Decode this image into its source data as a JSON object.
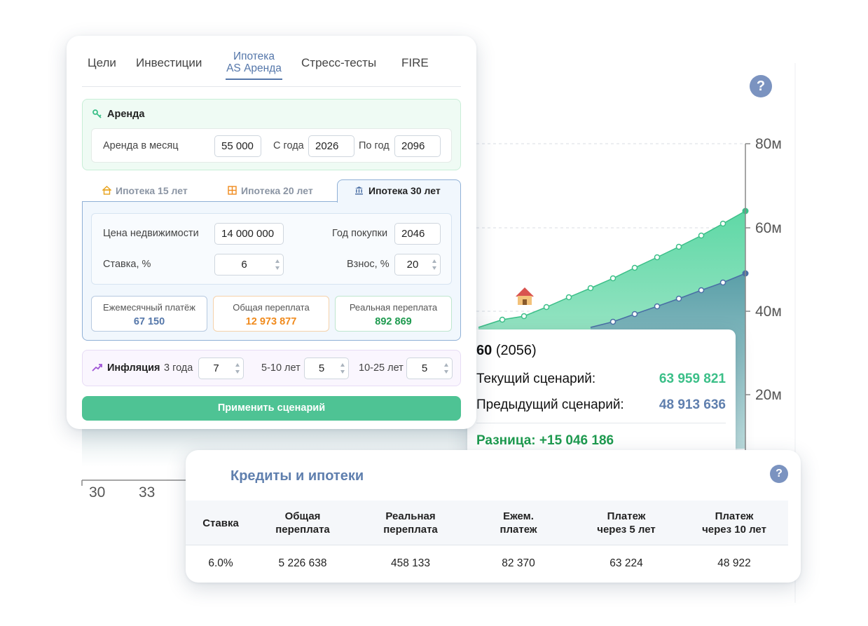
{
  "background_chart": {
    "y_axis_labels": [
      "80м",
      "60м",
      "40м",
      "20м"
    ],
    "x_axis_labels": [
      "30",
      "33"
    ],
    "help": "?",
    "tooltip": {
      "age": "60",
      "year": "(2056)",
      "rows": [
        {
          "label": "Текущий сценарий:",
          "value": "63 959 821"
        },
        {
          "label": "Предыдущий сценарий:",
          "value": "48 913 636"
        }
      ],
      "difference": "Разница: +15 046 186"
    }
  },
  "scenario_panel": {
    "tabs": [
      "Цели",
      "Инвестиции",
      "Стресс-тесты",
      "FIRE"
    ],
    "active_tab": [
      "Ипотека",
      "AS Аренда"
    ],
    "rent": {
      "title": "Аренда",
      "fields": [
        {
          "label": "Аренда в месяц",
          "value": "55 000"
        },
        {
          "label": "С года",
          "value": "2026"
        },
        {
          "label": "По год",
          "value": "2096"
        }
      ]
    },
    "mortgage": {
      "tabs": [
        "Ипотека 15 лет",
        "Ипотека 20 лет",
        "Ипотека 30 лет"
      ],
      "fields": [
        {
          "label": "Цена недвижимости",
          "value": "14 000 000"
        },
        {
          "label": "Год покупки",
          "value": "2046"
        },
        {
          "label": "Ставка, %",
          "value": "6"
        },
        {
          "label": "Взнос, %",
          "value": "20"
        }
      ],
      "stats": [
        {
          "label": "Ежемесячный платёж",
          "value": "67 150"
        },
        {
          "label": "Общая переплата",
          "value": "12 973 877"
        },
        {
          "label": "Реальная переплата",
          "value": "892 869"
        }
      ]
    },
    "inflation": {
      "title": "Инфляция",
      "fields": [
        {
          "label": "3 года",
          "value": "7"
        },
        {
          "label": "5-10 лет",
          "value": "5"
        },
        {
          "label": "10-25 лет",
          "value": "5"
        }
      ]
    },
    "apply_button": "Применить сценарий"
  },
  "credits": {
    "title": "Кредиты и ипотеки",
    "help": "?",
    "table": {
      "headers": [
        [
          "Ставка"
        ],
        [
          "Общая",
          "переплата"
        ],
        [
          "Реальная",
          "переплата"
        ],
        [
          "Ежем.",
          "платеж"
        ],
        [
          "Платеж",
          "через 5 лет"
        ],
        [
          "Платеж",
          "через 10 лет"
        ]
      ],
      "rows": [
        [
          "6.0%",
          "5 226 638",
          "458 133",
          "82 370",
          "63 224",
          "48 922"
        ]
      ]
    }
  }
}
